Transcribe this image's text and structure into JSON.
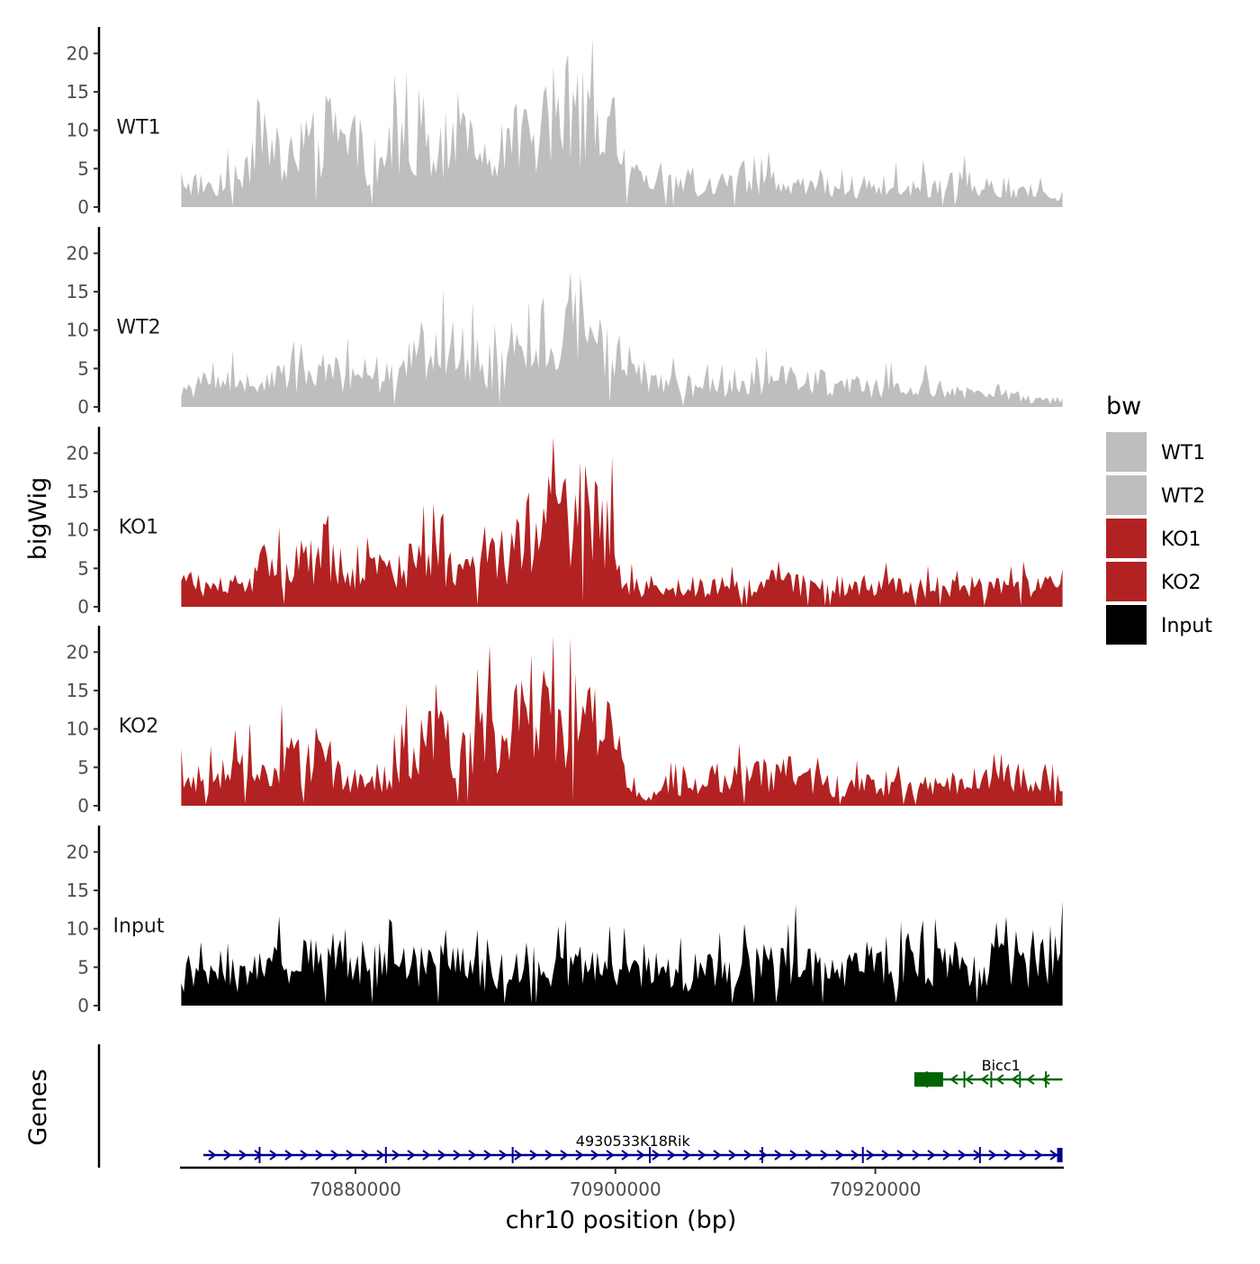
{
  "chart_data": {
    "type": "area",
    "title": "",
    "ylabel": "bigWig",
    "xlabel": "chr10 position (bp)",
    "genes_label": "Genes",
    "xlim": [
      70866500,
      70934500
    ],
    "ylim": [
      0,
      22.5
    ],
    "y_ticks": [
      0,
      5,
      10,
      15,
      20
    ],
    "y_tick_labels": [
      "0",
      "5",
      "10",
      "15",
      "20"
    ],
    "x_ticks": [
      70880000,
      70900000,
      70920000
    ],
    "x_tick_labels": [
      "70880000",
      "70900000",
      "70920000"
    ],
    "legend": {
      "title": "bw",
      "placement": "right",
      "entries": [
        {
          "label": "WT1",
          "color": "#bebebe"
        },
        {
          "label": "WT2",
          "color": "#bebebe"
        },
        {
          "label": "KO1",
          "color": "#b22222"
        },
        {
          "label": "KO2",
          "color": "#b22222"
        },
        {
          "label": "Input",
          "color": "#000000"
        }
      ]
    },
    "series": [
      {
        "name": "WT1",
        "color": "#bebebe",
        "x": [
          70866600,
          70869000,
          70871000,
          70873000,
          70874500,
          70876000,
          70878000,
          70880000,
          70882000,
          70884000,
          70886000,
          70888000,
          70890000,
          70892000,
          70894000,
          70896000,
          70897500,
          70899000,
          70901000,
          70903000,
          70906000,
          70909000,
          70912000,
          70915000,
          70918000,
          70921000,
          70924000,
          70926000,
          70928000,
          70931000,
          70934400
        ],
        "values": [
          4,
          3,
          5,
          9,
          7,
          10,
          11,
          9,
          6,
          13,
          9,
          10,
          6,
          9,
          12,
          15,
          13,
          11,
          5,
          3,
          4,
          3,
          4,
          3,
          3,
          3,
          3,
          4,
          3,
          2,
          2
        ]
      },
      {
        "name": "WT2",
        "color": "#bebebe",
        "x": [
          70866600,
          70869000,
          70871000,
          70873000,
          70875000,
          70877000,
          70879000,
          70881000,
          70883000,
          70885000,
          70887000,
          70889000,
          70891000,
          70893000,
          70895000,
          70897000,
          70899000,
          70901000,
          70903000,
          70906000,
          70909000,
          70912000,
          70915000,
          70918000,
          70921000,
          70924000,
          70927000,
          70930000,
          70932000,
          70934400
        ],
        "values": [
          3,
          3,
          4,
          3,
          5,
          4,
          5,
          3,
          5,
          8,
          9,
          7,
          6,
          10,
          12,
          13,
          9,
          6,
          4,
          3,
          3,
          4,
          4,
          3,
          3,
          3,
          2,
          2,
          1,
          1
        ]
      },
      {
        "name": "KO1",
        "color": "#b22222",
        "x": [
          70866600,
          70869000,
          70871000,
          70872000,
          70874000,
          70876000,
          70878000,
          70880000,
          70882000,
          70884000,
          70886000,
          70888000,
          70890000,
          70892000,
          70894000,
          70896000,
          70898000,
          70899500,
          70901000,
          70903000,
          70906000,
          70909000,
          70912000,
          70915000,
          70918000,
          70921000,
          70924000,
          70927000,
          70930000,
          70934400
        ],
        "values": [
          4,
          3,
          3,
          4,
          8,
          7,
          8,
          6,
          5,
          6,
          7,
          5,
          6,
          8,
          13,
          14,
          15,
          11,
          4,
          2,
          3,
          3,
          4,
          3,
          3,
          3,
          3,
          3,
          3,
          3
        ]
      },
      {
        "name": "KO2",
        "color": "#b22222",
        "x": [
          70866600,
          70869000,
          70871000,
          70873000,
          70875000,
          70877000,
          70879000,
          70881000,
          70883000,
          70885000,
          70887000,
          70889000,
          70891000,
          70893000,
          70895000,
          70897000,
          70899000,
          70900500,
          70902000,
          70904000,
          70907000,
          70910000,
          70913000,
          70916000,
          70919000,
          70922000,
          70925000,
          70928000,
          70931000,
          70934400
        ],
        "values": [
          4,
          4,
          5,
          6,
          7,
          8,
          5,
          3,
          6,
          9,
          10,
          9,
          11,
          12,
          13,
          14,
          12,
          6,
          1,
          3,
          4,
          4,
          5,
          3,
          3,
          3,
          3,
          4,
          4,
          4
        ]
      },
      {
        "name": "Input",
        "color": "#000000",
        "x": [
          70866600,
          70869000,
          70872000,
          70875000,
          70878000,
          70881000,
          70884000,
          70887000,
          70890000,
          70893000,
          70896000,
          70899000,
          70902000,
          70905000,
          70908000,
          70911000,
          70913000,
          70916000,
          70919000,
          70922000,
          70925000,
          70928000,
          70931000,
          70934400
        ],
        "values": [
          5,
          4,
          5,
          6,
          7,
          6,
          6,
          6,
          5,
          6,
          6,
          5,
          6,
          5,
          5,
          6,
          8,
          5,
          6,
          7,
          6,
          7,
          6,
          7
        ]
      }
    ],
    "genes": [
      {
        "name": "4930533K18Rik",
        "strand": "+",
        "color": "#00008b",
        "start": 70868300,
        "end": 70934400
      },
      {
        "name": "Bicc1",
        "strand": "-",
        "color": "#006400",
        "start": 70923000,
        "end": 70934400
      }
    ]
  }
}
